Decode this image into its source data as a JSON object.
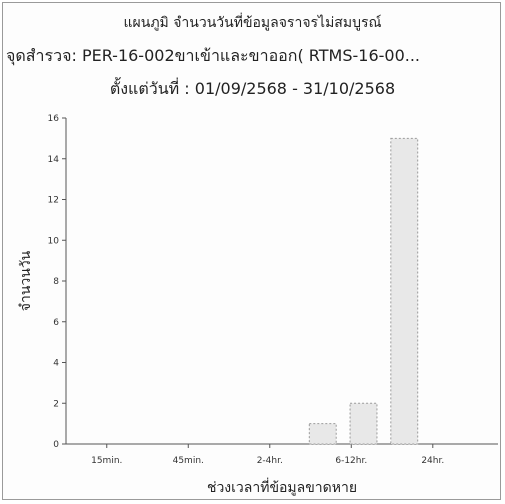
{
  "chart_data": {
    "type": "bar",
    "title": "แผนภูมิ จำนวนวันที่ข้อมูลจราจรไม่สมบูรณ์",
    "subtitle": "จุดสำรวจ: PER-16-002ขาเข้าและขาออก( RTMS-16-00...",
    "date_range": "ตั้งแต่วันที่ : 01/09/2568 - 31/10/2568",
    "xlabel": "ช่วงเวลาที่ข้อมูลขาดหาย",
    "ylabel": "จำนวนวัน",
    "categories": [
      "15min.",
      "45min.",
      "2-4hr.",
      "6-12hr.",
      "24hr."
    ],
    "bars": [
      {
        "position": 2.65,
        "value": 1
      },
      {
        "position": 3.15,
        "value": 2
      },
      {
        "position": 3.65,
        "value": 15
      }
    ],
    "ylim": [
      0,
      16
    ],
    "yticks": [
      0,
      2,
      4,
      6,
      8,
      10,
      12,
      14,
      16
    ],
    "bar_color": "#e8e8e8",
    "grid": false
  }
}
